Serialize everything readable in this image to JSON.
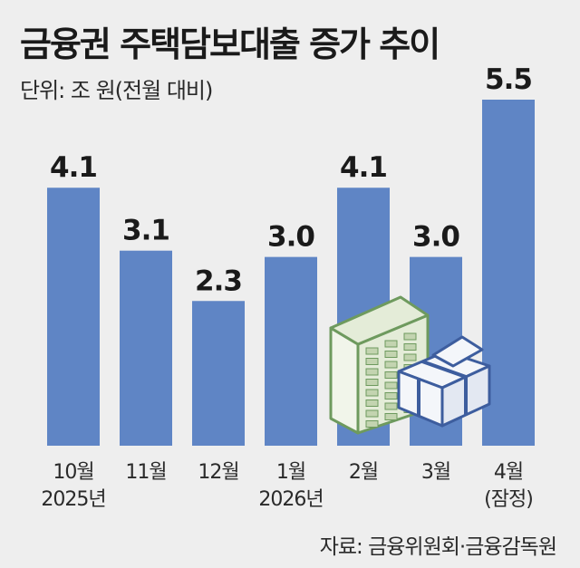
{
  "header": {
    "title": "금융권 주택담보대출 증가 추이",
    "unit": "단위: 조 원(전월 대비)"
  },
  "footer": {
    "source": "자료: 금융위원회·금융감독원"
  },
  "colors": {
    "bar": "#5f85c5",
    "background": "#eeeeee",
    "building": "#e4ecd8",
    "building_stroke": "#6e9a5e",
    "money": "#f4f6fa",
    "money_stroke": "#3d5d9e"
  },
  "chart_data": {
    "type": "bar",
    "title": "금융권 주택담보대출 증가 추이",
    "ylabel": "",
    "xlabel": "",
    "ylim": [
      0,
      5.5
    ],
    "categories": [
      [
        "10월",
        "2025년"
      ],
      [
        "11월"
      ],
      [
        "12월"
      ],
      [
        "1월",
        "2026년"
      ],
      [
        "2월"
      ],
      [
        "3월"
      ],
      [
        "4월",
        "(잠정)"
      ]
    ],
    "values": [
      4.1,
      3.1,
      2.3,
      3.0,
      4.1,
      3.0,
      5.5
    ],
    "value_labels": [
      "4.1",
      "3.1",
      "2.3",
      "3.0",
      "4.1",
      "3.0",
      "5.5"
    ],
    "grid": false,
    "legend": "none"
  },
  "illustration": {
    "icons": [
      "apartment-building-icon",
      "money-bundle-icon"
    ]
  }
}
